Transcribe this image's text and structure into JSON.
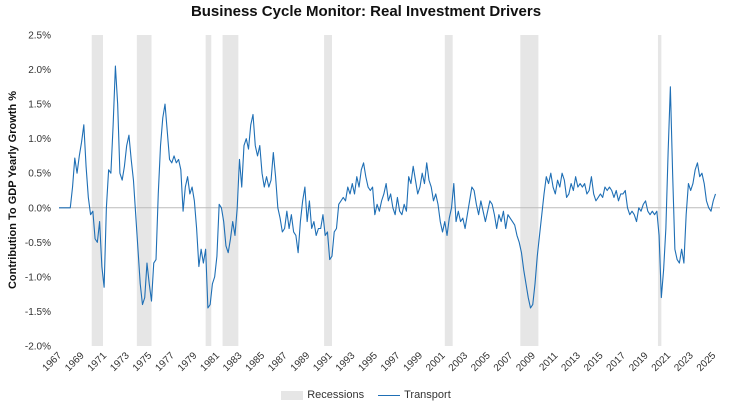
{
  "chart_data": {
    "type": "line",
    "title": "Business Cycle Monitor: Real Investment Drivers",
    "xlabel": "",
    "ylabel": "Contribution To GDP Yearly Growth %",
    "xlim": [
      1967,
      2025.6
    ],
    "ylim": [
      -2.0,
      2.5
    ],
    "y_ticks": [
      -2.0,
      -1.5,
      -1.0,
      -0.5,
      0.0,
      0.5,
      1.0,
      1.5,
      2.0,
      2.5
    ],
    "y_tick_labels": [
      "-2.0%",
      "-1.5%",
      "-1.0%",
      "-0.5%",
      "0.0%",
      "0.5%",
      "1.0%",
      "1.5%",
      "2.0%",
      "2.5%"
    ],
    "x_tick_labels": [
      "1967",
      "1969",
      "1971",
      "1973",
      "1975",
      "1977",
      "1979",
      "1981",
      "1983",
      "1985",
      "1987",
      "1989",
      "1991",
      "1993",
      "1995",
      "1997",
      "1999",
      "2001",
      "2003",
      "2005",
      "2007",
      "2009",
      "2011",
      "2013",
      "2015",
      "2017",
      "2019",
      "2021",
      "2023",
      "2025"
    ],
    "legend": [
      "Recessions",
      "Transport"
    ],
    "colors": {
      "line": "#1f6fb5",
      "recession": "#e6e6e6",
      "zero": "#bbbbbb"
    },
    "recessions": [
      [
        1969.9,
        1970.9
      ],
      [
        1973.9,
        1975.2
      ],
      [
        1980.0,
        1980.5
      ],
      [
        1981.5,
        1982.9
      ],
      [
        1990.5,
        1991.2
      ],
      [
        2001.2,
        2001.9
      ],
      [
        2007.9,
        2009.5
      ],
      [
        2020.1,
        2020.4
      ]
    ],
    "series": [
      {
        "name": "Transport",
        "points": [
          [
            1967.0,
            0.0
          ],
          [
            1968.0,
            0.0
          ],
          [
            1968.2,
            0.3
          ],
          [
            1968.4,
            0.72
          ],
          [
            1968.6,
            0.5
          ],
          [
            1968.8,
            0.75
          ],
          [
            1969.0,
            0.95
          ],
          [
            1969.2,
            1.2
          ],
          [
            1969.4,
            0.6
          ],
          [
            1969.6,
            0.15
          ],
          [
            1969.8,
            -0.1
          ],
          [
            1970.0,
            -0.05
          ],
          [
            1970.2,
            -0.45
          ],
          [
            1970.4,
            -0.5
          ],
          [
            1970.6,
            -0.2
          ],
          [
            1970.8,
            -0.85
          ],
          [
            1971.0,
            -1.15
          ],
          [
            1971.2,
            0.0
          ],
          [
            1971.4,
            0.55
          ],
          [
            1971.6,
            0.5
          ],
          [
            1971.8,
            1.2
          ],
          [
            1972.0,
            2.05
          ],
          [
            1972.2,
            1.5
          ],
          [
            1972.4,
            0.5
          ],
          [
            1972.6,
            0.4
          ],
          [
            1972.8,
            0.6
          ],
          [
            1973.0,
            0.9
          ],
          [
            1973.2,
            1.05
          ],
          [
            1973.4,
            0.7
          ],
          [
            1973.6,
            0.4
          ],
          [
            1973.8,
            -0.1
          ],
          [
            1974.0,
            -0.6
          ],
          [
            1974.2,
            -1.1
          ],
          [
            1974.4,
            -1.4
          ],
          [
            1974.6,
            -1.3
          ],
          [
            1974.8,
            -0.8
          ],
          [
            1975.0,
            -1.1
          ],
          [
            1975.2,
            -1.35
          ],
          [
            1975.4,
            -0.8
          ],
          [
            1975.6,
            -0.75
          ],
          [
            1975.8,
            0.2
          ],
          [
            1976.0,
            0.9
          ],
          [
            1976.2,
            1.3
          ],
          [
            1976.4,
            1.5
          ],
          [
            1976.6,
            1.1
          ],
          [
            1976.8,
            0.7
          ],
          [
            1977.0,
            0.65
          ],
          [
            1977.2,
            0.75
          ],
          [
            1977.4,
            0.65
          ],
          [
            1977.6,
            0.7
          ],
          [
            1977.8,
            0.55
          ],
          [
            1978.0,
            -0.05
          ],
          [
            1978.2,
            0.3
          ],
          [
            1978.4,
            0.45
          ],
          [
            1978.6,
            0.2
          ],
          [
            1978.8,
            0.3
          ],
          [
            1979.0,
            0.1
          ],
          [
            1979.2,
            -0.3
          ],
          [
            1979.4,
            -0.85
          ],
          [
            1979.6,
            -0.6
          ],
          [
            1979.8,
            -0.8
          ],
          [
            1980.0,
            -0.6
          ],
          [
            1980.2,
            -1.45
          ],
          [
            1980.4,
            -1.4
          ],
          [
            1980.6,
            -1.1
          ],
          [
            1980.8,
            -1.0
          ],
          [
            1981.0,
            -0.7
          ],
          [
            1981.2,
            0.05
          ],
          [
            1981.4,
            0.0
          ],
          [
            1981.6,
            -0.2
          ],
          [
            1981.8,
            -0.55
          ],
          [
            1982.0,
            -0.65
          ],
          [
            1982.2,
            -0.45
          ],
          [
            1982.4,
            -0.2
          ],
          [
            1982.6,
            -0.4
          ],
          [
            1982.8,
            0.0
          ],
          [
            1983.0,
            0.7
          ],
          [
            1983.2,
            0.3
          ],
          [
            1983.4,
            0.9
          ],
          [
            1983.6,
            1.0
          ],
          [
            1983.8,
            0.85
          ],
          [
            1984.0,
            1.2
          ],
          [
            1984.2,
            1.35
          ],
          [
            1984.4,
            0.9
          ],
          [
            1984.6,
            0.75
          ],
          [
            1984.8,
            0.9
          ],
          [
            1985.0,
            0.5
          ],
          [
            1985.2,
            0.3
          ],
          [
            1985.4,
            0.45
          ],
          [
            1985.6,
            0.3
          ],
          [
            1985.8,
            0.4
          ],
          [
            1986.0,
            0.8
          ],
          [
            1986.2,
            0.45
          ],
          [
            1986.4,
            0.0
          ],
          [
            1986.6,
            -0.15
          ],
          [
            1986.8,
            -0.35
          ],
          [
            1987.0,
            -0.3
          ],
          [
            1987.2,
            -0.05
          ],
          [
            1987.4,
            -0.3
          ],
          [
            1987.6,
            -0.1
          ],
          [
            1987.8,
            -0.35
          ],
          [
            1988.0,
            -0.4
          ],
          [
            1988.2,
            -0.65
          ],
          [
            1988.4,
            -0.2
          ],
          [
            1988.6,
            0.1
          ],
          [
            1988.8,
            0.3
          ],
          [
            1989.0,
            -0.2
          ],
          [
            1989.2,
            0.1
          ],
          [
            1989.4,
            -0.3
          ],
          [
            1989.6,
            -0.2
          ],
          [
            1989.8,
            -0.4
          ],
          [
            1990.0,
            -0.3
          ],
          [
            1990.2,
            -0.3
          ],
          [
            1990.4,
            -0.1
          ],
          [
            1990.6,
            -0.4
          ],
          [
            1990.8,
            -0.35
          ],
          [
            1991.0,
            -0.75
          ],
          [
            1991.2,
            -0.7
          ],
          [
            1991.4,
            -0.35
          ],
          [
            1991.6,
            -0.3
          ],
          [
            1991.8,
            0.05
          ],
          [
            1992.0,
            0.1
          ],
          [
            1992.2,
            0.15
          ],
          [
            1992.4,
            0.1
          ],
          [
            1992.6,
            0.3
          ],
          [
            1992.8,
            0.2
          ],
          [
            1993.0,
            0.35
          ],
          [
            1993.2,
            0.2
          ],
          [
            1993.4,
            0.45
          ],
          [
            1993.6,
            0.3
          ],
          [
            1993.8,
            0.55
          ],
          [
            1994.0,
            0.65
          ],
          [
            1994.2,
            0.45
          ],
          [
            1994.4,
            0.3
          ],
          [
            1994.6,
            0.25
          ],
          [
            1994.8,
            0.3
          ],
          [
            1995.0,
            -0.1
          ],
          [
            1995.2,
            0.05
          ],
          [
            1995.4,
            -0.05
          ],
          [
            1995.6,
            0.1
          ],
          [
            1995.8,
            0.2
          ],
          [
            1996.0,
            0.35
          ],
          [
            1996.2,
            0.1
          ],
          [
            1996.4,
            0.2
          ],
          [
            1996.6,
            0.0
          ],
          [
            1996.8,
            -0.1
          ],
          [
            1997.0,
            0.15
          ],
          [
            1997.2,
            -0.05
          ],
          [
            1997.4,
            -0.1
          ],
          [
            1997.6,
            0.05
          ],
          [
            1997.8,
            -0.05
          ],
          [
            1998.0,
            0.45
          ],
          [
            1998.2,
            0.35
          ],
          [
            1998.4,
            0.6
          ],
          [
            1998.6,
            0.4
          ],
          [
            1998.8,
            0.2
          ],
          [
            1999.0,
            0.3
          ],
          [
            1999.2,
            0.5
          ],
          [
            1999.4,
            0.35
          ],
          [
            1999.6,
            0.65
          ],
          [
            1999.8,
            0.4
          ],
          [
            2000.0,
            0.3
          ],
          [
            2000.2,
            0.1
          ],
          [
            2000.4,
            0.2
          ],
          [
            2000.6,
            0.05
          ],
          [
            2000.8,
            -0.2
          ],
          [
            2001.0,
            -0.35
          ],
          [
            2001.2,
            -0.2
          ],
          [
            2001.4,
            -0.4
          ],
          [
            2001.6,
            -0.15
          ],
          [
            2001.8,
            0.0
          ],
          [
            2002.0,
            0.35
          ],
          [
            2002.2,
            -0.2
          ],
          [
            2002.4,
            -0.05
          ],
          [
            2002.6,
            -0.2
          ],
          [
            2002.8,
            -0.15
          ],
          [
            2003.0,
            -0.3
          ],
          [
            2003.2,
            -0.1
          ],
          [
            2003.4,
            0.1
          ],
          [
            2003.6,
            0.3
          ],
          [
            2003.8,
            0.25
          ],
          [
            2004.0,
            0.05
          ],
          [
            2004.2,
            -0.1
          ],
          [
            2004.4,
            0.1
          ],
          [
            2004.6,
            -0.05
          ],
          [
            2004.8,
            -0.2
          ],
          [
            2005.0,
            -0.05
          ],
          [
            2005.2,
            0.1
          ],
          [
            2005.4,
            0.05
          ],
          [
            2005.6,
            -0.1
          ],
          [
            2005.8,
            -0.3
          ],
          [
            2006.0,
            -0.1
          ],
          [
            2006.2,
            -0.2
          ],
          [
            2006.4,
            -0.05
          ],
          [
            2006.6,
            -0.3
          ],
          [
            2006.8,
            -0.1
          ],
          [
            2007.0,
            -0.15
          ],
          [
            2007.2,
            -0.2
          ],
          [
            2007.4,
            -0.25
          ],
          [
            2007.6,
            -0.4
          ],
          [
            2007.8,
            -0.5
          ],
          [
            2008.0,
            -0.65
          ],
          [
            2008.2,
            -0.9
          ],
          [
            2008.4,
            -1.1
          ],
          [
            2008.6,
            -1.3
          ],
          [
            2008.8,
            -1.45
          ],
          [
            2009.0,
            -1.4
          ],
          [
            2009.2,
            -1.1
          ],
          [
            2009.4,
            -0.7
          ],
          [
            2009.6,
            -0.4
          ],
          [
            2009.8,
            -0.1
          ],
          [
            2010.0,
            0.2
          ],
          [
            2010.2,
            0.45
          ],
          [
            2010.4,
            0.35
          ],
          [
            2010.6,
            0.5
          ],
          [
            2010.8,
            0.3
          ],
          [
            2011.0,
            0.2
          ],
          [
            2011.2,
            0.4
          ],
          [
            2011.4,
            0.3
          ],
          [
            2011.6,
            0.5
          ],
          [
            2011.8,
            0.4
          ],
          [
            2012.0,
            0.15
          ],
          [
            2012.2,
            0.2
          ],
          [
            2012.4,
            0.35
          ],
          [
            2012.6,
            0.25
          ],
          [
            2012.8,
            0.45
          ],
          [
            2013.0,
            0.3
          ],
          [
            2013.2,
            0.35
          ],
          [
            2013.4,
            0.3
          ],
          [
            2013.6,
            0.35
          ],
          [
            2013.8,
            0.2
          ],
          [
            2014.0,
            0.25
          ],
          [
            2014.2,
            0.45
          ],
          [
            2014.4,
            0.2
          ],
          [
            2014.6,
            0.1
          ],
          [
            2014.8,
            0.15
          ],
          [
            2015.0,
            0.2
          ],
          [
            2015.2,
            0.15
          ],
          [
            2015.4,
            0.3
          ],
          [
            2015.6,
            0.25
          ],
          [
            2015.8,
            0.3
          ],
          [
            2016.0,
            0.25
          ],
          [
            2016.2,
            0.15
          ],
          [
            2016.4,
            0.25
          ],
          [
            2016.6,
            0.1
          ],
          [
            2016.8,
            0.2
          ],
          [
            2017.0,
            0.2
          ],
          [
            2017.2,
            0.25
          ],
          [
            2017.4,
            0.0
          ],
          [
            2017.6,
            -0.1
          ],
          [
            2017.8,
            -0.05
          ],
          [
            2018.0,
            -0.1
          ],
          [
            2018.2,
            -0.2
          ],
          [
            2018.4,
            0.0
          ],
          [
            2018.6,
            -0.05
          ],
          [
            2018.8,
            0.05
          ],
          [
            2019.0,
            0.1
          ],
          [
            2019.2,
            -0.05
          ],
          [
            2019.4,
            -0.1
          ],
          [
            2019.6,
            -0.05
          ],
          [
            2019.8,
            -0.1
          ],
          [
            2020.0,
            -0.05
          ],
          [
            2020.2,
            -0.4
          ],
          [
            2020.4,
            -1.3
          ],
          [
            2020.6,
            -0.9
          ],
          [
            2020.8,
            -0.3
          ],
          [
            2021.0,
            0.8
          ],
          [
            2021.2,
            1.75
          ],
          [
            2021.4,
            0.5
          ],
          [
            2021.6,
            -0.6
          ],
          [
            2021.8,
            -0.75
          ],
          [
            2022.0,
            -0.8
          ],
          [
            2022.2,
            -0.6
          ],
          [
            2022.4,
            -0.8
          ],
          [
            2022.6,
            -0.1
          ],
          [
            2022.8,
            0.35
          ],
          [
            2023.0,
            0.25
          ],
          [
            2023.2,
            0.35
          ],
          [
            2023.4,
            0.55
          ],
          [
            2023.6,
            0.65
          ],
          [
            2023.8,
            0.45
          ],
          [
            2024.0,
            0.5
          ],
          [
            2024.2,
            0.35
          ],
          [
            2024.4,
            0.1
          ],
          [
            2024.6,
            0.0
          ],
          [
            2024.8,
            -0.05
          ],
          [
            2025.0,
            0.1
          ],
          [
            2025.2,
            0.2
          ]
        ]
      }
    ]
  }
}
